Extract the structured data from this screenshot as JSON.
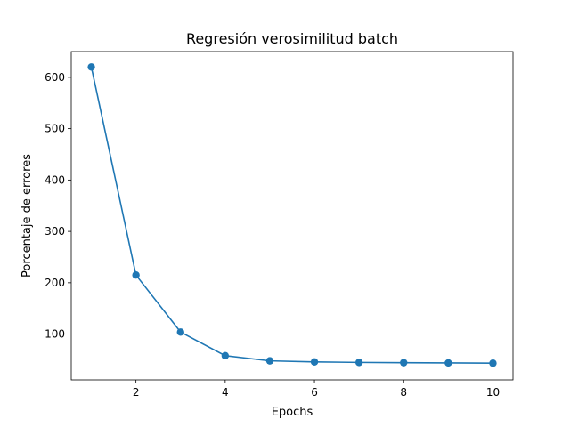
{
  "chart_data": {
    "type": "line",
    "title": "Regresión verosimilitud batch",
    "xlabel": "Epochs",
    "ylabel": "Porcentaje de errores",
    "xlim": [
      0.55,
      10.45
    ],
    "ylim": [
      11,
      650
    ],
    "xticks": [
      2,
      4,
      6,
      8,
      10
    ],
    "yticks": [
      100,
      200,
      300,
      400,
      500,
      600
    ],
    "grid": false,
    "legend": false,
    "series": [
      {
        "x": [
          1,
          2,
          3,
          4,
          5,
          6,
          7,
          8,
          9,
          10
        ],
        "values": [
          620,
          215,
          104,
          58,
          48,
          46,
          45,
          44.5,
          44,
          43.5
        ],
        "color": "#1f77b4",
        "marker": "circle"
      }
    ]
  }
}
